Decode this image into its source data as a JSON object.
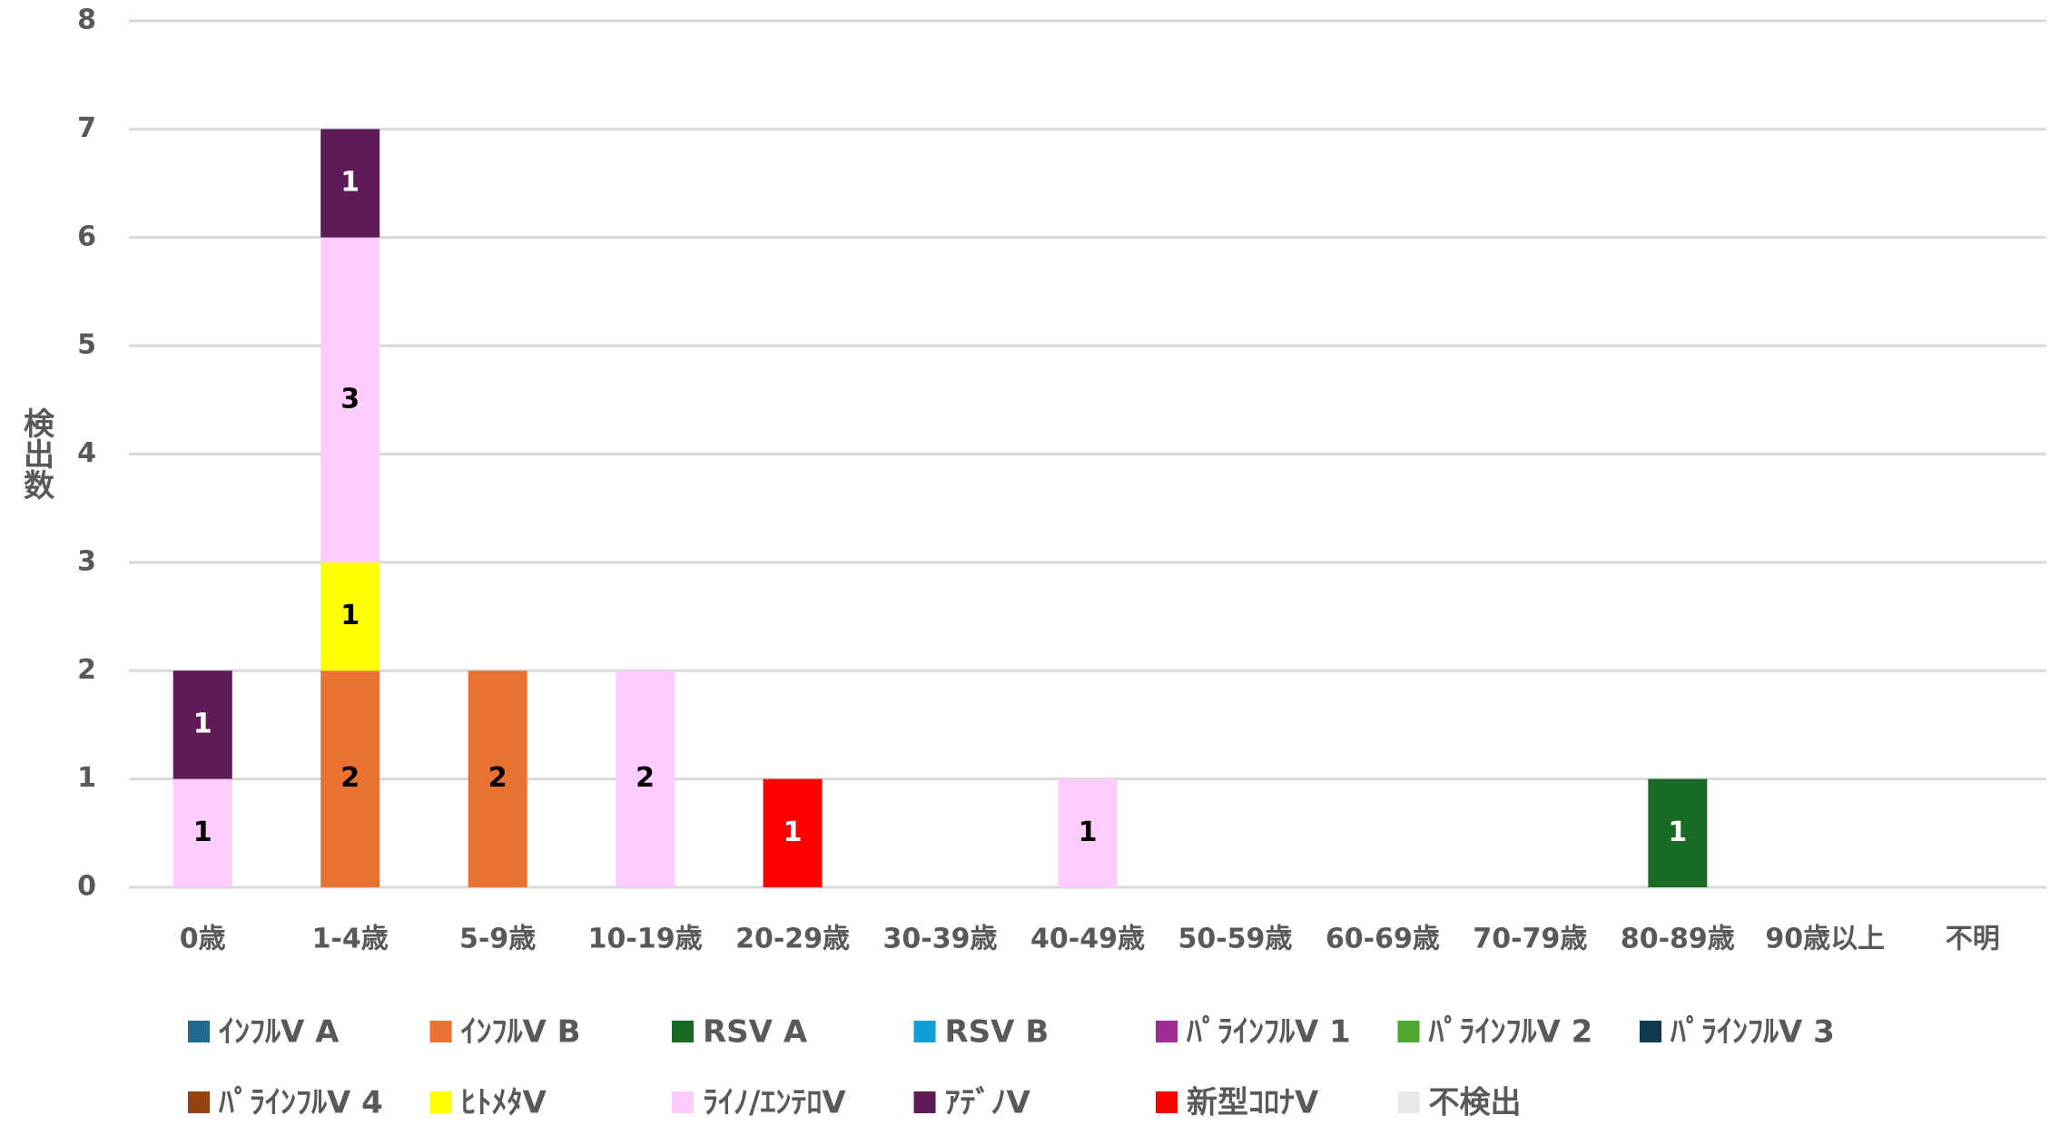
{
  "chart_data": {
    "type": "stacked_bar",
    "ylabel": "検出数",
    "categories": [
      "0歳",
      "1-4歳",
      "5-9歳",
      "10-19歳",
      "20-29歳",
      "30-39歳",
      "40-49歳",
      "50-59歳",
      "60-69歳",
      "70-79歳",
      "80-89歳",
      "90歳以上",
      "不明"
    ],
    "ylim": [
      0,
      8
    ],
    "yticks": [
      0,
      1,
      2,
      3,
      4,
      5,
      6,
      7,
      8
    ],
    "grid": true,
    "legend": "bottom",
    "series": [
      {
        "name": "ｲﾝﾌﾙV A",
        "color": "#1f6a8e",
        "values": [
          0,
          0,
          0,
          0,
          0,
          0,
          0,
          0,
          0,
          0,
          0,
          0,
          0
        ]
      },
      {
        "name": "ｲﾝﾌﾙV B",
        "color": "#e97132",
        "values": [
          0,
          2,
          2,
          0,
          0,
          0,
          0,
          0,
          0,
          0,
          0,
          0,
          0
        ]
      },
      {
        "name": "RSV A",
        "color": "#196b24",
        "values": [
          0,
          0,
          0,
          0,
          0,
          0,
          0,
          0,
          0,
          0,
          1,
          0,
          0
        ]
      },
      {
        "name": "RSV B",
        "color": "#0f9ed5",
        "values": [
          0,
          0,
          0,
          0,
          0,
          0,
          0,
          0,
          0,
          0,
          0,
          0,
          0
        ]
      },
      {
        "name": "ﾊﾟﾗｲﾝﾌﾙV 1",
        "color": "#a02b93",
        "values": [
          0,
          0,
          0,
          0,
          0,
          0,
          0,
          0,
          0,
          0,
          0,
          0,
          0
        ]
      },
      {
        "name": "ﾊﾟﾗｲﾝﾌﾙV 2",
        "color": "#4ea72e",
        "values": [
          0,
          0,
          0,
          0,
          0,
          0,
          0,
          0,
          0,
          0,
          0,
          0,
          0
        ]
      },
      {
        "name": "ﾊﾟﾗｲﾝﾌﾙV 3",
        "color": "#0e3a54",
        "values": [
          0,
          0,
          0,
          0,
          0,
          0,
          0,
          0,
          0,
          0,
          0,
          0,
          0
        ]
      },
      {
        "name": "ﾊﾟﾗｲﾝﾌﾙV 4",
        "color": "#96430f",
        "values": [
          0,
          0,
          0,
          0,
          0,
          0,
          0,
          0,
          0,
          0,
          0,
          0,
          0
        ]
      },
      {
        "name": "ﾋﾄﾒﾀV",
        "color": "#ffff00",
        "values": [
          0,
          1,
          0,
          0,
          0,
          0,
          0,
          0,
          0,
          0,
          0,
          0,
          0
        ]
      },
      {
        "name": "ﾗｲﾉ/ｴﾝﾃﾛV",
        "color": "#ffccff",
        "values": [
          1,
          3,
          0,
          2,
          0,
          0,
          1,
          0,
          0,
          0,
          0,
          0,
          0
        ]
      },
      {
        "name": "ｱﾃﾞﾉV",
        "color": "#5f1a5a",
        "values": [
          1,
          1,
          0,
          0,
          0,
          0,
          0,
          0,
          0,
          0,
          0,
          0,
          0
        ]
      },
      {
        "name": "新型ｺﾛﾅV",
        "color": "#ff0000",
        "values": [
          0,
          0,
          0,
          0,
          1,
          0,
          0,
          0,
          0,
          0,
          0,
          0,
          0
        ]
      },
      {
        "name": "不検出",
        "color": "#e8e8e8",
        "values": [
          0,
          0,
          0,
          0,
          0,
          0,
          0,
          0,
          0,
          0,
          0,
          0,
          0
        ]
      }
    ]
  }
}
